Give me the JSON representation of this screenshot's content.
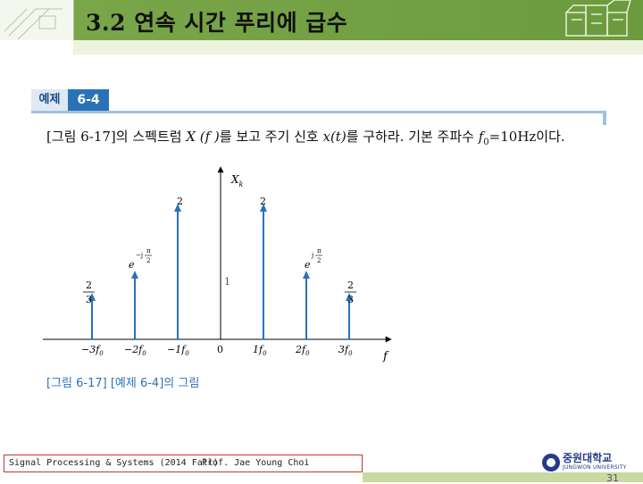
{
  "header": {
    "title": "3.2 연속 시간 푸리에 급수"
  },
  "example": {
    "tag": "예제",
    "number": "6-4",
    "problem_prefix": "[그림 6-17]의 스펙트럼 ",
    "problem_xf": "X (f )",
    "problem_mid": "를 보고 주기 신호 ",
    "problem_xt": "x(t)",
    "problem_mid2": "를 구하라. 기본 주파수 ",
    "problem_f0": "f",
    "problem_suffix": "=10Hz이다."
  },
  "figure": {
    "y_axis_label": "X",
    "y_axis_sub": "k",
    "x_axis_label": "f",
    "caption": "[그림 6-17] [예제 6-4]의 그림"
  },
  "chart_data": {
    "type": "stem",
    "x": [
      "-3f0",
      "-2f0",
      "-1f0",
      "0",
      "1f0",
      "2f0",
      "3f0"
    ],
    "tick_labels": [
      "−3f",
      "−2f",
      "−1f",
      "0",
      "1f",
      "2f",
      "3f"
    ],
    "values": [
      "2/3",
      "e^{-jπ/2}",
      "2",
      "1",
      "2",
      "e^{jπ/2}",
      "2/3"
    ],
    "magnitudes": [
      0.6667,
      1,
      2,
      1,
      2,
      1,
      0.6667
    ],
    "value_labels": {
      "top_2": "2",
      "one": "1",
      "frac_num": "2",
      "frac_den": "3",
      "exp_base": "e",
      "exp_neg": "−j",
      "exp_pos": "j",
      "pi": "π",
      "two": "2"
    },
    "ylabel": "X_k",
    "xlabel": "f",
    "color": "#2a72b8"
  },
  "footer": {
    "course": "Signal Processing & Systems (2014 Fall)",
    "professor": "Prof. Jae Young Choi",
    "logo_ko": "중원대학교",
    "logo_en": "JUNGWON UNIVERSITY",
    "page": "31"
  },
  "colors": {
    "header_green": "#6c9a3e",
    "accent_blue": "#2a72b8",
    "footer_green": "#c9d9a2"
  }
}
